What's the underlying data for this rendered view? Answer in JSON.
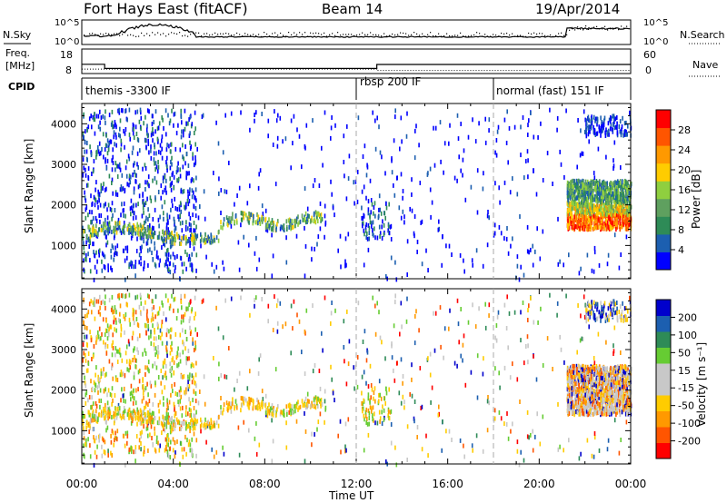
{
  "header": {
    "station": "Fort Hays East (fitACF)",
    "beam": "Beam 14",
    "date": "19/Apr/2014"
  },
  "noise_panel": {
    "left_label": "N.Sky",
    "right_label": "N.Search",
    "left_ticks": [
      "10^5",
      "10^0"
    ],
    "right_ticks": [
      "10^5",
      "10^0"
    ]
  },
  "freq_panel": {
    "label_line1": "Freq.",
    "label_line2": "[MHz]",
    "left_ticks": [
      "18",
      "8"
    ],
    "right_label": "Nave",
    "right_ticks": [
      "60",
      "0"
    ]
  },
  "cpid_panel": {
    "label": "CPID",
    "modes": [
      {
        "name": "themis -3300 IF",
        "start": 0.0
      },
      {
        "name": "rbsp 200 IF",
        "start": 12.0
      },
      {
        "name": "normal (fast) 151 IF",
        "start": 18.0
      }
    ]
  },
  "colors": {
    "power": [
      "#0000ff",
      "#1c5fb0",
      "#2e8b57",
      "#5fa05f",
      "#8fcf3f",
      "#ffcc00",
      "#ff9900",
      "#ff5500",
      "#ff0000"
    ],
    "velocity": [
      "#ff0000",
      "#ff5500",
      "#ff9900",
      "#ffcc00",
      "#c8c8c8",
      "#c8c8c8",
      "#66cc33",
      "#2e8b57",
      "#1c5fb0",
      "#0000cc"
    ]
  },
  "chart_data": [
    {
      "type": "heatmap",
      "name": "power",
      "xlabel": "",
      "ylabel": "Slant Range [km]",
      "xlim": [
        0,
        24
      ],
      "ylim": [
        180,
        4500
      ],
      "yticks": [
        "1000",
        "2000",
        "3000",
        "4000"
      ],
      "colorbar": {
        "label": "Power [dB]",
        "range": [
          0,
          32
        ],
        "ticks": [
          "4",
          "8",
          "12",
          "16",
          "20",
          "24",
          "28"
        ]
      }
    },
    {
      "type": "heatmap",
      "name": "velocity",
      "xlabel": "Time UT",
      "ylabel": "Slant Range [km]",
      "xlim": [
        0,
        24
      ],
      "ylim": [
        180,
        4500
      ],
      "xticks": [
        "00:00",
        "04:00",
        "08:00",
        "12:00",
        "16:00",
        "20:00",
        "00:00"
      ],
      "yticks": [
        "1000",
        "2000",
        "3000",
        "4000"
      ],
      "colorbar": {
        "label": "Velocity [m s⁻¹]",
        "ticks": [
          "200",
          "100",
          "50",
          "15",
          "-15",
          "-50",
          "-100",
          "-200"
        ]
      }
    }
  ]
}
